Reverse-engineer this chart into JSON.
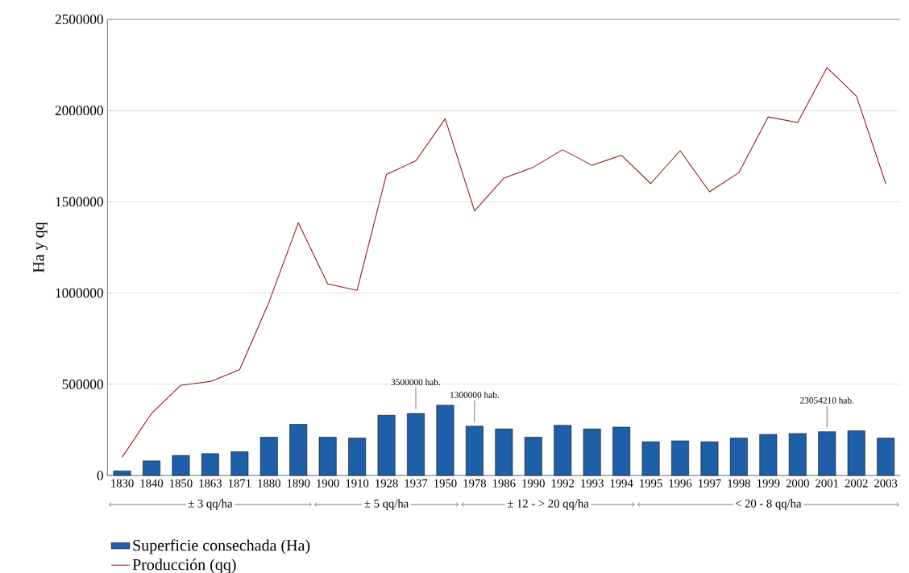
{
  "chart_data": {
    "type": "bar",
    "ylabel": "Ha y qq",
    "categories": [
      "1830",
      "1840",
      "1850",
      "1863",
      "1871",
      "1880",
      "1890",
      "1900",
      "1910",
      "1928",
      "1937",
      "1950",
      "1978",
      "1986",
      "1990",
      "1992",
      "1993",
      "1994",
      "1995",
      "1996",
      "1997",
      "1998",
      "1999",
      "2000",
      "2001",
      "2002",
      "2003"
    ],
    "series": [
      {
        "name": "Superficie consechada (Ha)",
        "color": "#1f5fa8",
        "values": [
          25000,
          80000,
          110000,
          120000,
          130000,
          210000,
          280000,
          210000,
          205000,
          330000,
          340000,
          385000,
          270000,
          255000,
          210000,
          275000,
          255000,
          265000,
          185000,
          190000,
          185000,
          205000,
          225000,
          230000,
          240000,
          245000,
          205000
        ]
      },
      {
        "name": "Producción (qq)",
        "type": "line",
        "color": "#8b1a1a",
        "values": [
          100000,
          340000,
          495000,
          515000,
          580000,
          950000,
          1385000,
          1050000,
          1015000,
          1650000,
          1725000,
          1955000,
          1450000,
          1630000,
          1690000,
          1785000,
          1700000,
          1755000,
          1600000,
          1780000,
          1555000,
          1660000,
          1965000,
          1935000,
          2235000,
          2080000,
          1600000
        ]
      }
    ],
    "ylim": [
      0,
      2500000
    ],
    "yticks": [
      0,
      500000,
      1000000,
      1500000,
      2000000,
      2500000
    ],
    "grid": "y",
    "legend": "bottom",
    "annotations": [
      {
        "text": "3500000 hab.",
        "x": "1937",
        "y": 340000
      },
      {
        "text": "1300000 hab.",
        "x": "1978",
        "y": 270000
      },
      {
        "text": "23054210 hab.",
        "x": "2001",
        "y": 240000
      },
      "± 3 qq/ha",
      "± 5 qq/ha",
      "± 12 - > 20 qq/ha",
      "< 20 - 8 qq/ha"
    ]
  }
}
